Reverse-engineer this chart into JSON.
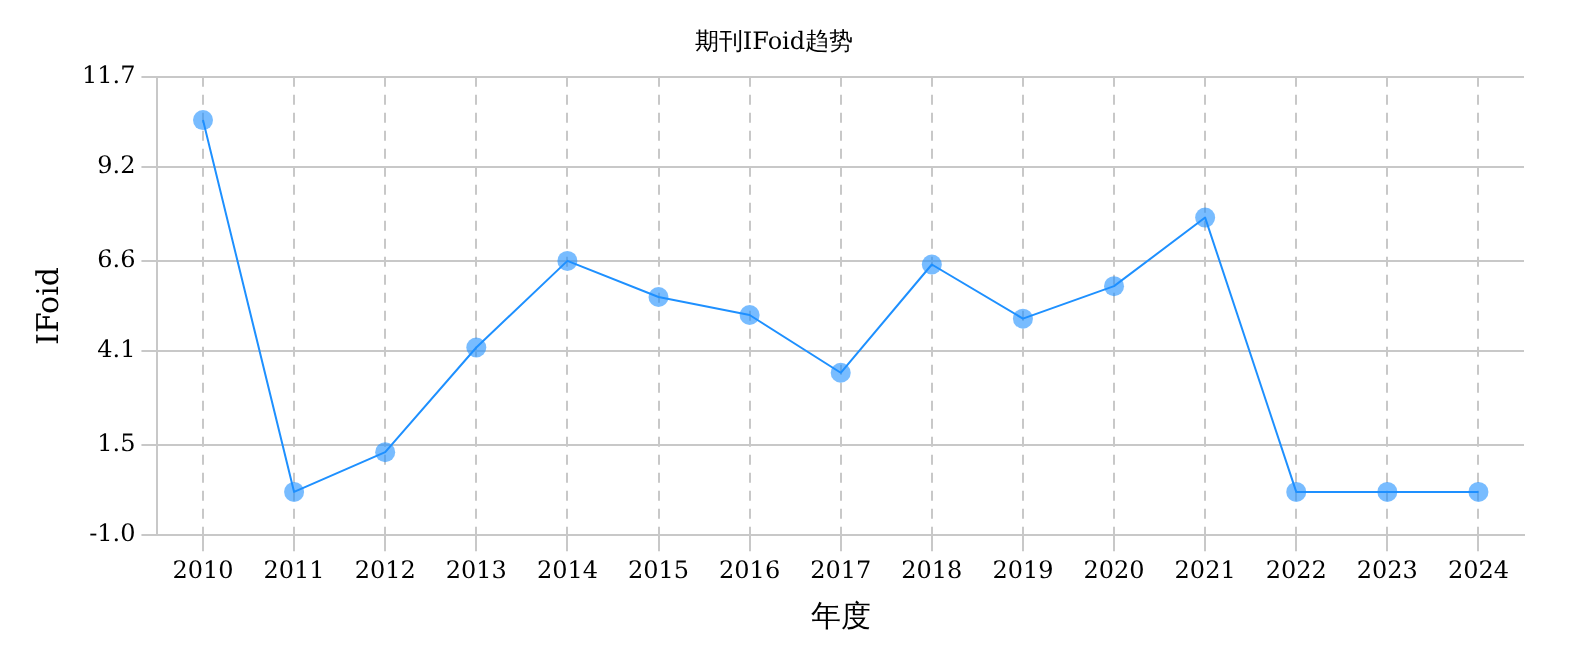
{
  "chart_data": {
    "type": "line",
    "title": "期刊IFoid趋势",
    "xlabel": "年度",
    "ylabel": "IFoid",
    "categories": [
      "2010",
      "2011",
      "2012",
      "2013",
      "2014",
      "2015",
      "2016",
      "2017",
      "2018",
      "2019",
      "2020",
      "2021",
      "2022",
      "2023",
      "2024"
    ],
    "series": [
      {
        "color": "#1e90ff",
        "values": [
          10.5,
          0.2,
          1.3,
          4.2,
          6.6,
          5.6,
          5.1,
          3.5,
          6.5,
          5.0,
          5.9,
          7.8,
          0.2,
          0.2,
          0.2
        ]
      }
    ],
    "ylim": [
      -1.0,
      11.7
    ],
    "yticks": [
      {
        "value": -1.0,
        "label": "-1.0"
      },
      1.5,
      4.1,
      6.6,
      9.2,
      11.7
    ],
    "grid": true,
    "marker": "circle",
    "line_style": "solid",
    "legend": false
  }
}
